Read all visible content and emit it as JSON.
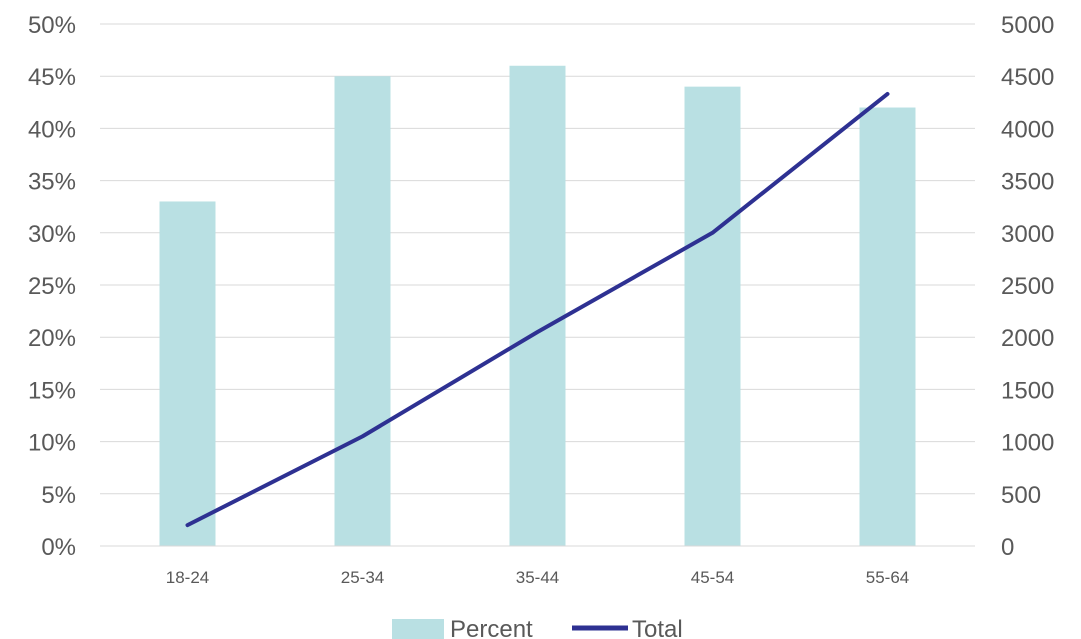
{
  "chart_data": {
    "type": "bar",
    "categories": [
      "18-24",
      "25-34",
      "35-44",
      "45-54",
      "55-64"
    ],
    "series": [
      {
        "name": "Percent",
        "type": "bar",
        "axis": "left",
        "values": [
          0.33,
          0.45,
          0.46,
          0.44,
          0.42
        ],
        "color": "#b9e0e3"
      },
      {
        "name": "Total",
        "type": "line",
        "axis": "right",
        "values": [
          200,
          1050,
          2050,
          3000,
          4330
        ],
        "color": "#2e3192"
      }
    ],
    "y_left": {
      "range": [
        0,
        0.5
      ],
      "ticks": [
        "0%",
        "5%",
        "10%",
        "15%",
        "20%",
        "25%",
        "30%",
        "35%",
        "40%",
        "45%",
        "50%"
      ]
    },
    "y_right": {
      "range": [
        0,
        5000
      ],
      "ticks": [
        "0",
        "500",
        "1000",
        "1500",
        "2000",
        "2500",
        "3000",
        "3500",
        "4000",
        "4500",
        "5000"
      ]
    },
    "grid": true,
    "legend": {
      "position": "bottom",
      "entries": [
        "Percent",
        "Total"
      ]
    }
  }
}
